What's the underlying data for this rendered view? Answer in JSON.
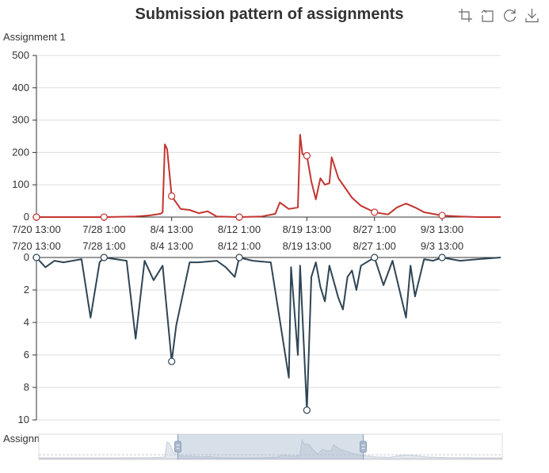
{
  "title": "Submission pattern of assignments",
  "toolbox": [
    {
      "name": "zoom-icon",
      "tooltip": "Zoom"
    },
    {
      "name": "zoom-reset-icon",
      "tooltip": "Zoom Reset"
    },
    {
      "name": "restore-icon",
      "tooltip": "Restore"
    },
    {
      "name": "save-image-icon",
      "tooltip": "Save as Image"
    }
  ],
  "chart_data": {
    "type": "area",
    "x_axis_ticks": [
      "7/20 13:00",
      "7/28 1:00",
      "8/4 13:00",
      "8/12 1:00",
      "8/19 13:00",
      "8/27 1:00",
      "9/3 13:00"
    ],
    "x_start": "7/20 13:00",
    "x_end": "9/10 1:00",
    "series": [
      {
        "name": "Assignment 1",
        "color": "#c23531",
        "ylim": [
          0,
          500
        ],
        "y_ticks": [
          0,
          100,
          200,
          300,
          400,
          500
        ],
        "points": [
          [
            "7/20 13:00",
            0
          ],
          [
            "7/24 13:00",
            0
          ],
          [
            "7/28 1:00",
            0
          ],
          [
            "7/31 13:00",
            2
          ],
          [
            "8/2 1:00",
            5
          ],
          [
            "8/3 7:00",
            10
          ],
          [
            "8/3 13:00",
            15
          ],
          [
            "8/3 19:00",
            225
          ],
          [
            "8/4 1:00",
            210
          ],
          [
            "8/4 13:00",
            65
          ],
          [
            "8/5 13:00",
            25
          ],
          [
            "8/6 13:00",
            22
          ],
          [
            "8/7 13:00",
            12
          ],
          [
            "8/8 13:00",
            18
          ],
          [
            "8/9 13:00",
            2
          ],
          [
            "8/12 1:00",
            0
          ],
          [
            "8/14 13:00",
            2
          ],
          [
            "8/16 1:00",
            10
          ],
          [
            "8/16 13:00",
            45
          ],
          [
            "8/17 13:00",
            25
          ],
          [
            "8/18 13:00",
            30
          ],
          [
            "8/18 19:00",
            255
          ],
          [
            "8/19 1:00",
            195
          ],
          [
            "8/19 13:00",
            190
          ],
          [
            "8/20 1:00",
            110
          ],
          [
            "8/20 13:00",
            55
          ],
          [
            "8/21 1:00",
            120
          ],
          [
            "8/21 13:00",
            100
          ],
          [
            "8/22 1:00",
            105
          ],
          [
            "8/22 7:00",
            185
          ],
          [
            "8/23 1:00",
            120
          ],
          [
            "8/24 13:00",
            60
          ],
          [
            "8/25 13:00",
            35
          ],
          [
            "8/27 1:00",
            15
          ],
          [
            "8/28 13:00",
            8
          ],
          [
            "8/29 13:00",
            30
          ],
          [
            "8/30 13:00",
            42
          ],
          [
            "8/31 13:00",
            30
          ],
          [
            "9/1 13:00",
            15
          ],
          [
            "9/3 13:00",
            5
          ],
          [
            "9/5 13:00",
            2
          ],
          [
            "9/7 13:00",
            0
          ],
          [
            "9/10 1:00",
            0
          ]
        ]
      },
      {
        "name": "Assignment 2",
        "color": "#2f4554",
        "ylim": [
          0,
          10
        ],
        "inverse": true,
        "y_ticks": [
          0,
          2,
          4,
          6,
          8,
          10
        ],
        "points": [
          [
            "7/20 13:00",
            0
          ],
          [
            "7/21 13:00",
            0.6
          ],
          [
            "7/22 13:00",
            0.2
          ],
          [
            "7/23 13:00",
            0.3
          ],
          [
            "7/25 13:00",
            0.1
          ],
          [
            "7/26 13:00",
            3.7
          ],
          [
            "7/27 13:00",
            0.3
          ],
          [
            "7/28 1:00",
            0
          ],
          [
            "7/30 13:00",
            0.2
          ],
          [
            "7/31 13:00",
            5
          ],
          [
            "8/1 13:00",
            0.2
          ],
          [
            "8/2 13:00",
            1.4
          ],
          [
            "8/3 13:00",
            0.5
          ],
          [
            "8/4 13:00",
            6.4
          ],
          [
            "8/5 1:00",
            4.2
          ],
          [
            "8/6 13:00",
            0.3
          ],
          [
            "8/7 13:00",
            0.3
          ],
          [
            "8/9 13:00",
            0.2
          ],
          [
            "8/10 13:00",
            0.6
          ],
          [
            "8/11 13:00",
            1.2
          ],
          [
            "8/12 1:00",
            0
          ],
          [
            "8/13 13:00",
            0.2
          ],
          [
            "8/15 13:00",
            0.3
          ],
          [
            "8/17 13:00",
            7.4
          ],
          [
            "8/17 19:00",
            0.6
          ],
          [
            "8/18 13:00",
            6
          ],
          [
            "8/18 19:00",
            0.5
          ],
          [
            "8/19 13:00",
            9.4
          ],
          [
            "8/20 1:00",
            1.2
          ],
          [
            "8/20 13:00",
            0.3
          ],
          [
            "8/21 1:00",
            1.8
          ],
          [
            "8/21 13:00",
            2.7
          ],
          [
            "8/22 1:00",
            0.5
          ],
          [
            "8/22 13:00",
            1.5
          ],
          [
            "8/23 1:00",
            2.5
          ],
          [
            "8/23 13:00",
            3.2
          ],
          [
            "8/24 1:00",
            1.2
          ],
          [
            "8/24 13:00",
            0.8
          ],
          [
            "8/25 1:00",
            2
          ],
          [
            "8/25 13:00",
            0.5
          ],
          [
            "8/27 1:00",
            0
          ],
          [
            "8/28 1:00",
            1.7
          ],
          [
            "8/29 1:00",
            0.2
          ],
          [
            "8/30 13:00",
            3.7
          ],
          [
            "8/31 1:00",
            0.5
          ],
          [
            "8/31 13:00",
            2.4
          ],
          [
            "9/1 13:00",
            0.1
          ],
          [
            "9/2 13:00",
            0.2
          ],
          [
            "9/3 13:00",
            0
          ],
          [
            "9/5 13:00",
            0.2
          ],
          [
            "9/7 13:00",
            0.1
          ],
          [
            "9/10 1:00",
            0
          ]
        ]
      }
    ],
    "marker_dates": [
      "7/20 13:00",
      "7/28 1:00",
      "8/4 13:00",
      "8/12 1:00",
      "8/19 13:00",
      "8/27 1:00",
      "9/3 13:00"
    ],
    "data_zoom": {
      "start_percent": 30,
      "end_percent": 70
    },
    "grid": true,
    "legend": "none"
  }
}
